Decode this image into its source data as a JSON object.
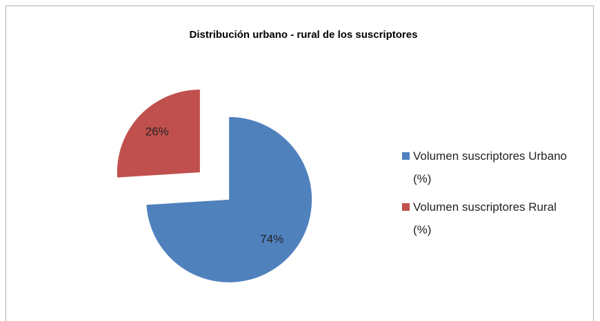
{
  "chart_data": {
    "type": "pie",
    "title": "Distribución  urbano - rural de los suscriptores",
    "categories": [
      "Volumen suscriptores Urbano (%)",
      "Volumen suscriptores Rural (%)"
    ],
    "values": [
      74,
      26
    ],
    "value_labels": [
      "74%",
      "26%"
    ],
    "colors": [
      "#4f81bd",
      "#c0504d"
    ],
    "exploded": true,
    "legend": "right"
  }
}
